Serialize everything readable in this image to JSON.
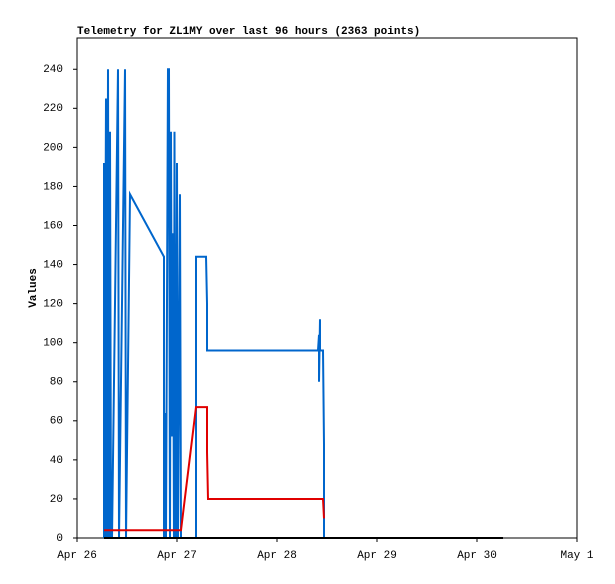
{
  "chart_data": {
    "type": "line",
    "title": "Telemetry for ZL1MY over last 96 hours (2363 points)",
    "y_label": "Values",
    "xlim": [
      0,
      5
    ],
    "xticks": [
      {
        "value": 0,
        "label": "Apr 26"
      },
      {
        "value": 1,
        "label": "Apr 27"
      },
      {
        "value": 2,
        "label": "Apr 28"
      },
      {
        "value": 3,
        "label": "Apr 29"
      },
      {
        "value": 4,
        "label": "Apr 30"
      },
      {
        "value": 5,
        "label": "May 1"
      }
    ],
    "ylim": [
      0,
      256
    ],
    "yticks": [
      0,
      20,
      40,
      60,
      80,
      100,
      120,
      140,
      160,
      180,
      200,
      220,
      240
    ],
    "grid": false,
    "series": [
      {
        "color": "#0066cc",
        "x": [
          0.27,
          0.27,
          0.28,
          0.285,
          0.29,
          0.3,
          0.31,
          0.32,
          0.33,
          0.34,
          0.35,
          0.41,
          0.42,
          0.48,
          0.49,
          0.53,
          0.87,
          0.87,
          0.88,
          0.89,
          0.91,
          0.92,
          0.93,
          0.94,
          0.95,
          0.96,
          0.97,
          0.975,
          0.98,
          0.99,
          1.0,
          1.01,
          1.03,
          1.04,
          1.19,
          1.19,
          1.29,
          1.3,
          1.3,
          2.41,
          2.42,
          2.42,
          2.43,
          2.43,
          2.46,
          2.47,
          2.47
        ],
        "values": [
          0,
          192,
          0,
          160,
          225,
          0,
          240,
          0,
          208,
          0,
          0,
          240,
          0,
          240,
          0,
          176,
          144,
          0,
          64,
          0,
          240,
          240,
          0,
          208,
          52,
          156,
          0,
          208,
          104,
          0,
          192,
          0,
          176,
          0,
          0,
          144,
          144,
          120,
          96,
          96,
          104,
          80,
          112,
          96,
          96,
          48,
          0
        ]
      },
      {
        "color": "#e00000",
        "x": [
          0.27,
          1.04,
          1.19,
          1.3,
          1.3,
          1.31,
          2.46,
          2.47
        ],
        "values": [
          4,
          4,
          67,
          67,
          44,
          20,
          20,
          10
        ]
      },
      {
        "color": "#000000",
        "x": [
          0.27,
          4.26
        ],
        "values": [
          0,
          0
        ]
      }
    ]
  }
}
